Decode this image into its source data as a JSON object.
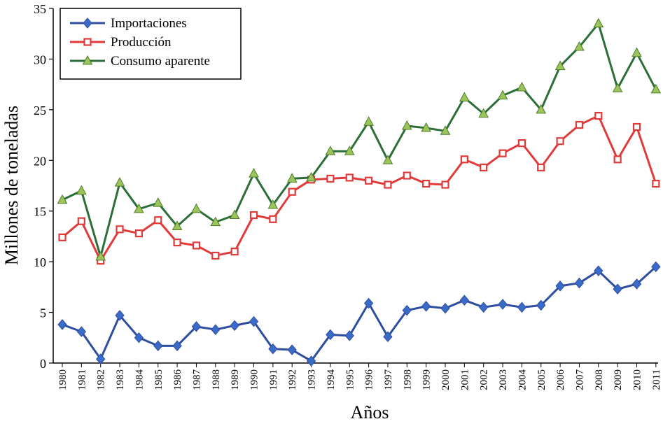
{
  "chart_data": {
    "type": "line",
    "title": "",
    "xlabel": "Años",
    "ylabel": "Millones de toneladas",
    "ylim": [
      0,
      35
    ],
    "yticks": [
      0,
      5,
      10,
      15,
      20,
      25,
      30,
      35
    ],
    "grid": false,
    "legend_position": "top-left",
    "categories": [
      "1980",
      "1981",
      "1982",
      "1983",
      "1984",
      "1985",
      "1986",
      "1987",
      "1988",
      "1989",
      "1990",
      "1991",
      "1992",
      "1993",
      "1994",
      "1995",
      "1996",
      "1997",
      "1998",
      "1999",
      "2000",
      "2001",
      "2002",
      "2003",
      "2004",
      "2005",
      "2006",
      "2007",
      "2008",
      "2009",
      "2010",
      "2011"
    ],
    "series": [
      {
        "name": "Importaciones",
        "color": "#2e4da0",
        "marker": "diamond",
        "values": [
          3.8,
          3.1,
          0.4,
          4.7,
          2.5,
          1.7,
          1.7,
          3.6,
          3.3,
          3.7,
          4.1,
          1.4,
          1.3,
          0.2,
          2.8,
          2.7,
          5.9,
          2.6,
          5.2,
          5.6,
          5.4,
          6.2,
          5.5,
          5.8,
          5.5,
          5.7,
          7.6,
          7.9,
          9.1,
          7.3,
          7.8,
          9.5
        ]
      },
      {
        "name": "Producción",
        "color": "#e03a3a",
        "marker": "square",
        "values": [
          12.4,
          14.0,
          10.1,
          13.2,
          12.8,
          14.1,
          11.9,
          11.6,
          10.6,
          11.0,
          14.6,
          14.2,
          16.9,
          18.1,
          18.2,
          18.3,
          18.0,
          17.6,
          18.5,
          17.7,
          17.6,
          20.1,
          19.3,
          20.7,
          21.7,
          19.3,
          21.9,
          23.5,
          24.4,
          20.1,
          23.3,
          17.7
        ]
      },
      {
        "name": "Consumo aparente",
        "color": "#2b6e38",
        "marker": "triangle",
        "values": [
          16.1,
          17.0,
          10.5,
          17.8,
          15.2,
          15.8,
          13.5,
          15.2,
          13.9,
          14.6,
          18.7,
          15.6,
          18.2,
          18.3,
          20.9,
          20.9,
          23.8,
          20.0,
          23.4,
          23.2,
          22.9,
          26.2,
          24.6,
          26.4,
          27.2,
          25.0,
          29.3,
          31.2,
          33.5,
          27.1,
          30.6,
          27.0
        ]
      }
    ]
  }
}
